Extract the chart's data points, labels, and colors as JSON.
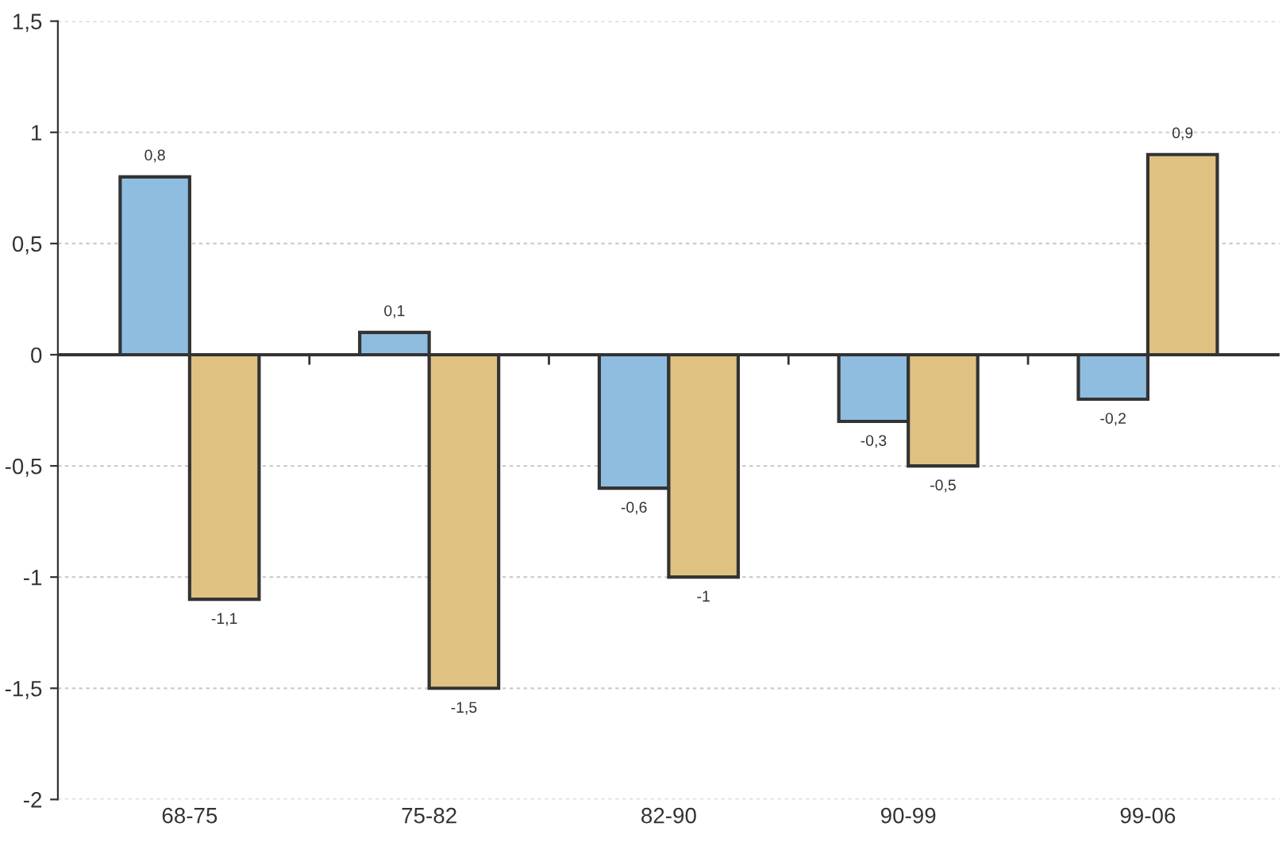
{
  "chart_data": {
    "type": "bar",
    "categories": [
      "68-75",
      "75-82",
      "82-90",
      "90-99",
      "99-06"
    ],
    "series": [
      {
        "color": "#8fbde0",
        "values": [
          0.8,
          0.1,
          -0.6,
          -0.3,
          -0.2
        ],
        "value_labels": [
          "0,8",
          "0,1",
          "-0,6",
          "-0,3",
          "-0,2"
        ]
      },
      {
        "color": "#dfc182",
        "values": [
          -1.1,
          -1.5,
          -1,
          -0.5,
          0.9
        ],
        "value_labels": [
          "-1,1",
          "-1,5",
          "-1",
          "-0,5",
          "0,9"
        ]
      }
    ],
    "ylim": [
      -2,
      1.5
    ],
    "yticks": [
      {
        "value": -2,
        "label": "-2"
      },
      {
        "value": -1.5,
        "label": "-1,5"
      },
      {
        "value": -1,
        "label": "-1"
      },
      {
        "value": -0.5,
        "label": "-0,5"
      },
      {
        "value": 0,
        "label": "0"
      },
      {
        "value": 0.5,
        "label": "0,5"
      },
      {
        "value": 1,
        "label": "1"
      },
      {
        "value": 1.5,
        "label": "1,5"
      }
    ],
    "grid": "y"
  }
}
